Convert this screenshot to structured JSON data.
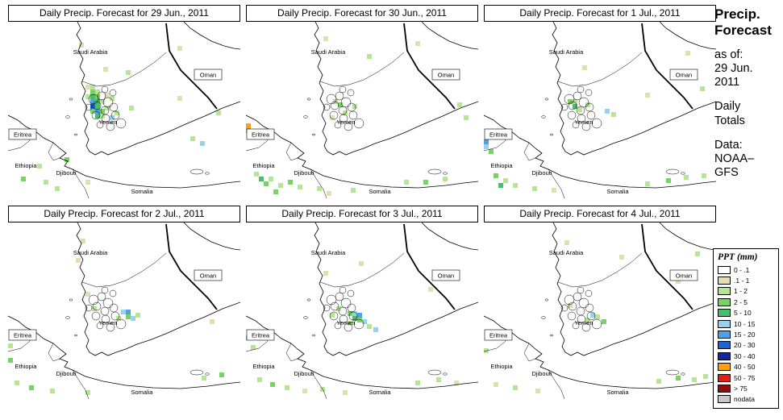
{
  "sidebar": {
    "title1": "Precip.",
    "title2": "Forecast",
    "asof_label": "as of:",
    "asof_line1": "29 Jun.",
    "asof_line2": "2011",
    "totals_line1": "Daily",
    "totals_line2": "Totals",
    "data_label": "Data:",
    "data_line1": "NOAA–",
    "data_line2": "GFS"
  },
  "legend": {
    "title": "PPT (mm)",
    "entries": [
      {
        "label": "0 - .1",
        "color": "#ffffff"
      },
      {
        "label": ".1 - 1",
        "color": "#e6dcb4"
      },
      {
        "label": "1 - 2",
        "color": "#b4e696"
      },
      {
        "label": "2 - 5",
        "color": "#78d264"
      },
      {
        "label": "5 - 10",
        "color": "#46be6e"
      },
      {
        "label": "10 - 15",
        "color": "#96d2f0"
      },
      {
        "label": "15 - 20",
        "color": "#50a0e6"
      },
      {
        "label": "20 - 30",
        "color": "#1e64d2"
      },
      {
        "label": "30 - 40",
        "color": "#142896"
      },
      {
        "label": "40 - 50",
        "color": "#ffa014"
      },
      {
        "label": "50 - 75",
        "color": "#e61e14"
      },
      {
        "label": "> 75",
        "color": "#960a0a"
      },
      {
        "label": "nodata",
        "color": "#c8c8c8"
      }
    ]
  },
  "map_labels": {
    "saudi_arabia": "Saudi Arabia",
    "oman": "Oman",
    "yemen": "Yemen",
    "eritrea": "Eritrea",
    "ethiopia": "Ethiopia",
    "djibouti": "Djibouti",
    "somalia": "Somalia"
  },
  "panels": [
    {
      "title": "Daily Precip. Forecast for 29 Jun., 2011",
      "cells": [
        [
          96,
          78,
          1
        ],
        [
          102,
          78,
          2
        ],
        [
          102,
          84,
          3
        ],
        [
          108,
          84,
          2
        ],
        [
          96,
          90,
          2
        ],
        [
          102,
          90,
          4
        ],
        [
          108,
          90,
          3
        ],
        [
          102,
          96,
          6
        ],
        [
          108,
          96,
          4
        ],
        [
          114,
          96,
          2
        ],
        [
          102,
          102,
          7
        ],
        [
          108,
          102,
          4
        ],
        [
          102,
          108,
          3
        ],
        [
          108,
          108,
          6
        ],
        [
          114,
          108,
          3
        ],
        [
          108,
          114,
          4
        ],
        [
          114,
          114,
          2
        ],
        [
          120,
          104,
          2
        ],
        [
          126,
          116,
          5
        ],
        [
          132,
          110,
          2
        ],
        [
          120,
          88,
          1
        ],
        [
          126,
          92,
          2
        ],
        [
          150,
          104,
          2
        ],
        [
          210,
          92,
          1
        ],
        [
          258,
          110,
          2
        ],
        [
          118,
          56,
          1
        ],
        [
          146,
          60,
          2
        ],
        [
          88,
          26,
          1
        ],
        [
          210,
          30,
          1
        ],
        [
          36,
          176,
          2
        ],
        [
          16,
          192,
          3
        ],
        [
          44,
          196,
          2
        ],
        [
          70,
          168,
          3
        ],
        [
          96,
          196,
          1
        ],
        [
          58,
          204,
          2
        ],
        [
          238,
          148,
          5
        ],
        [
          226,
          142,
          2
        ]
      ]
    },
    {
      "title": "Daily Precip. Forecast for 30 Jun., 2011",
      "cells": [
        [
          0,
          126,
          9
        ],
        [
          0,
          132,
          3
        ],
        [
          6,
          138,
          2
        ],
        [
          108,
          96,
          2
        ],
        [
          114,
          100,
          3
        ],
        [
          120,
          110,
          2
        ],
        [
          104,
          116,
          1
        ],
        [
          132,
          102,
          2
        ],
        [
          96,
          18,
          1
        ],
        [
          150,
          40,
          2
        ],
        [
          210,
          24,
          1
        ],
        [
          262,
          100,
          2
        ],
        [
          270,
          116,
          2
        ],
        [
          10,
          186,
          2
        ],
        [
          16,
          192,
          4
        ],
        [
          28,
          192,
          2
        ],
        [
          22,
          198,
          3
        ],
        [
          40,
          200,
          2
        ],
        [
          52,
          196,
          3
        ],
        [
          64,
          202,
          2
        ],
        [
          34,
          208,
          3
        ],
        [
          88,
          204,
          2
        ],
        [
          100,
          210,
          1
        ],
        [
          130,
          206,
          2
        ],
        [
          196,
          196,
          2
        ],
        [
          220,
          196,
          3
        ],
        [
          244,
          192,
          2
        ]
      ]
    },
    {
      "title": "Daily Precip. Forecast for 1 Jul., 2011",
      "cells": [
        [
          0,
          146,
          6
        ],
        [
          0,
          152,
          5
        ],
        [
          6,
          158,
          3
        ],
        [
          104,
          96,
          3
        ],
        [
          110,
          96,
          2
        ],
        [
          110,
          102,
          4
        ],
        [
          116,
          106,
          2
        ],
        [
          126,
          100,
          2
        ],
        [
          150,
          108,
          5
        ],
        [
          158,
          112,
          2
        ],
        [
          122,
          54,
          1
        ],
        [
          200,
          88,
          1
        ],
        [
          250,
          36,
          1
        ],
        [
          268,
          80,
          2
        ],
        [
          12,
          188,
          3
        ],
        [
          24,
          194,
          2
        ],
        [
          18,
          200,
          4
        ],
        [
          36,
          200,
          2
        ],
        [
          60,
          204,
          2
        ],
        [
          84,
          206,
          1
        ],
        [
          200,
          198,
          2
        ],
        [
          226,
          194,
          3
        ],
        [
          248,
          190,
          2
        ],
        [
          270,
          188,
          2
        ]
      ]
    },
    {
      "title": "Daily Precip. Forecast for 2 Jul., 2011",
      "cells": [
        [
          140,
          108,
          5
        ],
        [
          146,
          108,
          6
        ],
        [
          146,
          114,
          3
        ],
        [
          152,
          116,
          5
        ],
        [
          158,
          112,
          2
        ],
        [
          134,
          116,
          2
        ],
        [
          104,
          104,
          2
        ],
        [
          96,
          86,
          1
        ],
        [
          90,
          20,
          1
        ],
        [
          84,
          44,
          1
        ],
        [
          0,
          150,
          2
        ],
        [
          0,
          168,
          3
        ],
        [
          8,
          196,
          2
        ],
        [
          26,
          202,
          3
        ],
        [
          52,
          206,
          2
        ],
        [
          96,
          208,
          2
        ],
        [
          240,
          190,
          2
        ],
        [
          262,
          186,
          3
        ],
        [
          250,
          120,
          1
        ]
      ]
    },
    {
      "title": "Daily Precip. Forecast for 3 Jul., 2011",
      "cells": [
        [
          126,
          110,
          3
        ],
        [
          132,
          110,
          5
        ],
        [
          138,
          112,
          6
        ],
        [
          132,
          116,
          4
        ],
        [
          138,
          118,
          3
        ],
        [
          144,
          120,
          5
        ],
        [
          126,
          122,
          2
        ],
        [
          150,
          126,
          2
        ],
        [
          158,
          130,
          5
        ],
        [
          112,
          104,
          2
        ],
        [
          104,
          112,
          2
        ],
        [
          140,
          48,
          1
        ],
        [
          96,
          60,
          1
        ],
        [
          226,
          80,
          1
        ],
        [
          0,
          140,
          3
        ],
        [
          6,
          152,
          2
        ],
        [
          14,
          192,
          2
        ],
        [
          30,
          198,
          3
        ],
        [
          48,
          202,
          2
        ],
        [
          70,
          206,
          1
        ],
        [
          92,
          204,
          2
        ],
        [
          120,
          208,
          1
        ],
        [
          210,
          196,
          2
        ],
        [
          236,
          192,
          2
        ],
        [
          258,
          196,
          1
        ]
      ]
    },
    {
      "title": "Daily Precip. Forecast for 4 Jul., 2011",
      "cells": [
        [
          132,
          112,
          5
        ],
        [
          138,
          114,
          2
        ],
        [
          126,
          118,
          2
        ],
        [
          146,
          120,
          3
        ],
        [
          104,
          100,
          1
        ],
        [
          100,
          22,
          1
        ],
        [
          168,
          40,
          1
        ],
        [
          238,
          70,
          1
        ],
        [
          262,
          36,
          2
        ],
        [
          0,
          156,
          2
        ],
        [
          12,
          198,
          1
        ],
        [
          36,
          202,
          2
        ],
        [
          64,
          206,
          1
        ],
        [
          214,
          194,
          2
        ],
        [
          238,
          190,
          3
        ],
        [
          258,
          192,
          2
        ],
        [
          272,
          188,
          2
        ]
      ]
    }
  ]
}
